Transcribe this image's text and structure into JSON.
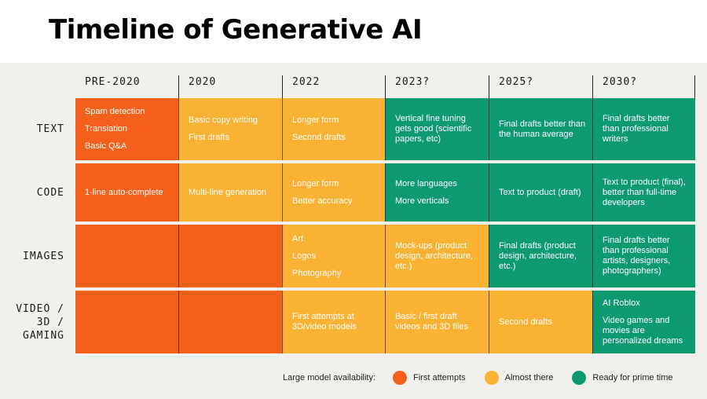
{
  "title": "Timeline of Generative AI",
  "columns": [
    "PRE-2020",
    "2020",
    "2022",
    "2023?",
    "2025?",
    "2030?"
  ],
  "rows": [
    {
      "label": "TEXT",
      "cells": [
        {
          "status": "red",
          "lines": [
            "Spam detection",
            "Translation",
            "Basic Q&A"
          ],
          "spaced": true
        },
        {
          "status": "yellow",
          "lines": [
            "Basic copy writing",
            "First drafts"
          ],
          "spaced": true
        },
        {
          "status": "yellow",
          "lines": [
            "Longer form",
            "Second drafts"
          ],
          "spaced": true
        },
        {
          "status": "green",
          "lines": [
            "Vertical fine tuning gets good (scientific papers, etc)"
          ],
          "spaced": false
        },
        {
          "status": "green",
          "lines": [
            "Final drafts better than the human average"
          ],
          "spaced": false
        },
        {
          "status": "green",
          "lines": [
            "Final drafts better than professional writers"
          ],
          "spaced": false
        }
      ]
    },
    {
      "label": "CODE",
      "cells": [
        {
          "status": "red",
          "lines": [
            "1-line auto-complete"
          ],
          "spaced": false
        },
        {
          "status": "yellow",
          "lines": [
            "Multi-line generation"
          ],
          "spaced": false
        },
        {
          "status": "yellow",
          "lines": [
            "Longer form",
            "Better accuracy"
          ],
          "spaced": true
        },
        {
          "status": "green",
          "lines": [
            "More languages",
            "More verticals"
          ],
          "spaced": true
        },
        {
          "status": "green",
          "lines": [
            "Text to product (draft)"
          ],
          "spaced": false
        },
        {
          "status": "green",
          "lines": [
            "Text to product (final), better than full-time developers"
          ],
          "spaced": false
        }
      ]
    },
    {
      "label": "IMAGES",
      "cells": [
        {
          "status": "red",
          "lines": [],
          "spaced": false
        },
        {
          "status": "red",
          "lines": [],
          "spaced": false
        },
        {
          "status": "yellow",
          "lines": [
            "Art",
            "Logos",
            "Photography"
          ],
          "spaced": true
        },
        {
          "status": "yellow",
          "lines": [
            "Mock-ups (product design, architecture, etc.)"
          ],
          "spaced": false
        },
        {
          "status": "green",
          "lines": [
            "Final drafts (product design, architecture, etc.)"
          ],
          "spaced": false
        },
        {
          "status": "green",
          "lines": [
            "Final drafts better than professional artists, designers, photographers)"
          ],
          "spaced": false
        }
      ]
    },
    {
      "label": "VIDEO / 3D / GAMING",
      "label_lines": [
        "VIDEO /",
        "3D /",
        "GAMING"
      ],
      "cells": [
        {
          "status": "red",
          "lines": [],
          "spaced": false
        },
        {
          "status": "red",
          "lines": [],
          "spaced": false
        },
        {
          "status": "yellow",
          "lines": [
            "First attempts at 3D/video models"
          ],
          "spaced": false
        },
        {
          "status": "yellow",
          "lines": [
            "Basic / first draft videos and 3D files"
          ],
          "spaced": false
        },
        {
          "status": "yellow",
          "lines": [
            "Second drafts"
          ],
          "spaced": false
        },
        {
          "status": "green",
          "lines": [
            "AI Roblox",
            "Video games and movies are personalized dreams"
          ],
          "spaced": true
        }
      ]
    }
  ],
  "legend": {
    "title": "Large model availability:",
    "items": [
      {
        "label": "First attempts",
        "color": "#f4601c"
      },
      {
        "label": "Almost there",
        "color": "#f9b233"
      },
      {
        "label": "Ready for prime time",
        "color": "#0e9a6f"
      }
    ]
  },
  "colors": {
    "red": "#f4601c",
    "yellow": "#f9b233",
    "green": "#0e9a6f",
    "panel": "#f2f0ec"
  }
}
